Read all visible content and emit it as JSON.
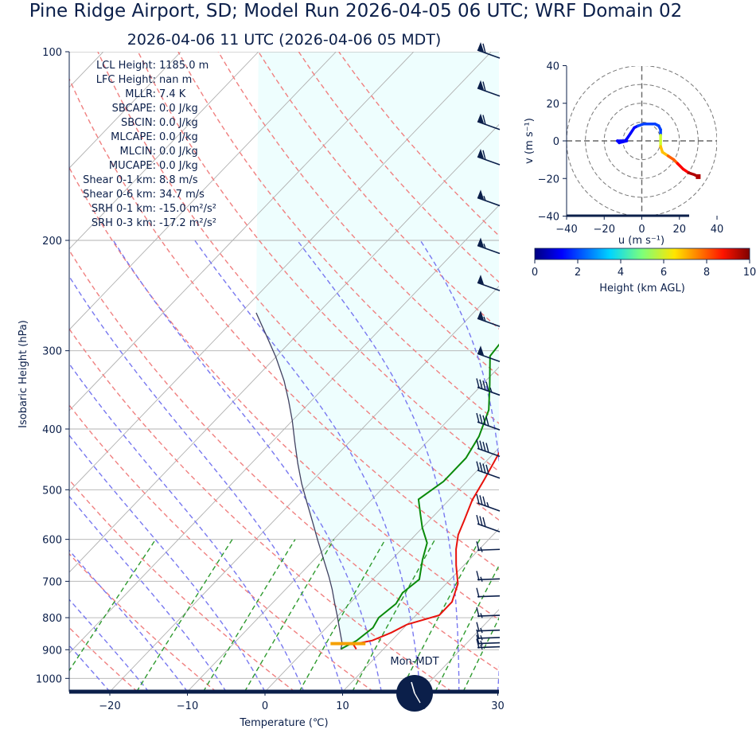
{
  "title": "Pine Ridge Airport, SD; Model Run 2026-04-05 06 UTC; WRF Domain 02",
  "subtitle": "2026-04-06 11 UTC  (2026-04-06 05 MDT)",
  "skewt": {
    "xlabel": "Temperature (℃)",
    "ylabel": "Isobaric Height (hPa)",
    "x_ticks": [
      "−20",
      "−10",
      "0",
      "10",
      "20",
      "30"
    ],
    "y_ticks": [
      "100",
      "200",
      "300",
      "400",
      "500",
      "600",
      "700",
      "800",
      "900",
      "1000"
    ]
  },
  "indices": [
    {
      "label": "LCL Height:",
      "value": "1185.0 m"
    },
    {
      "label": "LFC Height:",
      "value": "nan m"
    },
    {
      "label": "MLLR:",
      "value": "7.4 K"
    },
    {
      "label": "SBCAPE:",
      "value": "0.0 J/kg"
    },
    {
      "label": "SBCIN:",
      "value": "0.0 J/kg"
    },
    {
      "label": "MLCAPE:",
      "value": "0.0 J/kg"
    },
    {
      "label": "MLCIN:",
      "value": "0.0 J/kg"
    },
    {
      "label": "MUCAPE:",
      "value": "0.0 J/kg"
    },
    {
      "label": "Shear 0-1 km:",
      "value": "8.8 m/s"
    },
    {
      "label": "Shear 0-6 km:",
      "value": "34.7 m/s"
    },
    {
      "label": "SRH 0-1 km:",
      "value": "-15.0 m²/s²"
    },
    {
      "label": "SRH 0-3 km:",
      "value": "-17.2 m²/s²"
    }
  ],
  "clock_label": "Mon-MDT",
  "hodograph": {
    "xlabel": "u (m s⁻¹)",
    "ylabel": "v (m s⁻¹)",
    "ticks": [
      "−40",
      "−20",
      "0",
      "20",
      "40"
    ],
    "colorbar_label": "Height (km AGL)",
    "colorbar_ticks": [
      "0",
      "2",
      "4",
      "6",
      "8",
      "10"
    ]
  },
  "colors": {
    "temperature": "#e8120c",
    "dewpoint": "#0a8a0a",
    "parcel": "#404060",
    "dry_adiabat": "#f08080",
    "moist_adiabat": "#7878f0",
    "mixing_ratio": "#2e9a2e",
    "isotherm": "#b0b0b0",
    "cape_shade": "#eefefe",
    "barb": "#0b1f4a",
    "text": "#0b1f4a"
  },
  "chart_data": [
    {
      "type": "line",
      "name_hint": "skew-t log-p",
      "xlim": [
        -25,
        30
      ],
      "ylim": [
        1050,
        100
      ],
      "y_scale": "log",
      "grid": true,
      "series": [
        {
          "name": "Temperature",
          "points": [
            [
              6.5,
              898
            ],
            [
              5.5,
              882
            ],
            [
              7.5,
              870
            ],
            [
              9,
              845
            ],
            [
              10,
              820
            ],
            [
              13,
              793
            ],
            [
              13,
              755
            ],
            [
              11.5,
              706
            ],
            [
              9,
              660
            ],
            [
              7,
              622
            ],
            [
              5.5,
              590
            ],
            [
              4.5,
              560
            ],
            [
              3,
              519
            ],
            [
              2,
              481
            ],
            [
              1,
              448
            ],
            [
              -0.5,
              403
            ],
            [
              -3,
              358
            ],
            [
              -4.5,
              335
            ],
            [
              -6,
              313
            ],
            [
              -8,
              291
            ],
            [
              -10,
              270
            ],
            [
              -12,
              249
            ],
            [
              -12,
              233
            ],
            [
              -12,
              220
            ],
            [
              -9,
              207
            ],
            [
              -5,
              190
            ],
            [
              1,
              170
            ],
            [
              7,
              150
            ],
            [
              12,
              134
            ],
            [
              18,
              113
            ],
            [
              22,
              100
            ]
          ]
        },
        {
          "name": "Dew point",
          "points": [
            [
              4.5,
              898
            ],
            [
              5.5,
              870
            ],
            [
              6,
              830
            ],
            [
              5.5,
              800
            ],
            [
              6,
              760
            ],
            [
              5.5,
              730
            ],
            [
              6,
              695
            ],
            [
              4,
              647
            ],
            [
              2.5,
              608
            ],
            [
              0,
              575
            ],
            [
              -2,
              546
            ],
            [
              -4,
              518
            ],
            [
              -3,
              485
            ],
            [
              -3,
              445
            ],
            [
              -4,
              411
            ],
            [
              -6,
              373
            ],
            [
              -9,
              340
            ],
            [
              -12.5,
              306
            ],
            [
              -13,
              282
            ],
            [
              -13,
              255
            ],
            [
              -12,
              233
            ],
            [
              -10,
              208
            ],
            [
              -9,
              189
            ],
            [
              -8,
              170
            ],
            [
              -6,
              153
            ],
            [
              -2,
              133
            ],
            [
              2,
              120
            ],
            [
              6,
              109
            ],
            [
              8,
              100
            ]
          ]
        },
        {
          "name": "Parcel",
          "points": [
            [
              4.5,
              898
            ],
            [
              4,
              880
            ],
            [
              2,
              837
            ],
            [
              0,
              796
            ],
            [
              -2,
              758
            ],
            [
              -4,
              721
            ],
            [
              -6,
              688
            ],
            [
              -9,
              643
            ],
            [
              -12,
              601
            ],
            [
              -15,
              561
            ],
            [
              -18,
              524
            ],
            [
              -21,
              489
            ],
            [
              -24,
              454
            ],
            [
              -27,
              420
            ],
            [
              -30,
              388
            ],
            [
              -33,
              360
            ],
            [
              -36,
              335
            ],
            [
              -40,
              307
            ],
            [
              -44,
              283
            ],
            [
              -48,
              261
            ]
          ]
        }
      ],
      "surface_marker": {
        "temperature_range": [
          2.5,
          7
        ],
        "pressure": 880
      },
      "wind_barbs": [
        {
          "pressure": 100,
          "speed_kt": 60
        },
        {
          "pressure": 115,
          "speed_kt": 60
        },
        {
          "pressure": 130,
          "speed_kt": 60
        },
        {
          "pressure": 148,
          "speed_kt": 60
        },
        {
          "pressure": 172,
          "speed_kt": 55
        },
        {
          "pressure": 205,
          "speed_kt": 55
        },
        {
          "pressure": 235,
          "speed_kt": 50
        },
        {
          "pressure": 268,
          "speed_kt": 55
        },
        {
          "pressure": 305,
          "speed_kt": 50
        },
        {
          "pressure": 345,
          "speed_kt": 45
        },
        {
          "pressure": 392,
          "speed_kt": 40
        },
        {
          "pressure": 432,
          "speed_kt": 40
        },
        {
          "pressure": 468,
          "speed_kt": 40
        },
        {
          "pressure": 528,
          "speed_kt": 35
        },
        {
          "pressure": 570,
          "speed_kt": 30
        },
        {
          "pressure": 628,
          "speed_kt": 15
        },
        {
          "pressure": 700,
          "speed_kt": 15
        },
        {
          "pressure": 745,
          "speed_kt": 10
        },
        {
          "pressure": 800,
          "speed_kt": 15
        },
        {
          "pressure": 845,
          "speed_kt": 15
        },
        {
          "pressure": 868,
          "speed_kt": 15
        },
        {
          "pressure": 885,
          "speed_kt": 15
        },
        {
          "pressure": 898,
          "speed_kt": 15
        }
      ]
    },
    {
      "type": "line",
      "name_hint": "hodograph",
      "xlim": [
        -40,
        40
      ],
      "ylim": [
        -40,
        40
      ],
      "rings": [
        10,
        20,
        30,
        40
      ],
      "colormap": "jet",
      "color_range_km": [
        0,
        10
      ],
      "points": [
        [
          -8,
          0
        ],
        [
          -12,
          -1
        ],
        [
          -13,
          0
        ],
        [
          -11,
          0
        ],
        [
          -9,
          0
        ],
        [
          -8,
          1
        ],
        [
          -6,
          4
        ],
        [
          -4,
          7
        ],
        [
          -2,
          8
        ],
        [
          1,
          9
        ],
        [
          4,
          9
        ],
        [
          7,
          9
        ],
        [
          9,
          8
        ],
        [
          10,
          6
        ],
        [
          10,
          3
        ],
        [
          10,
          0
        ],
        [
          10,
          -3
        ],
        [
          11,
          -6
        ],
        [
          14,
          -8
        ],
        [
          17,
          -10
        ],
        [
          19,
          -12
        ],
        [
          22,
          -15
        ],
        [
          25,
          -17
        ],
        [
          28,
          -18
        ],
        [
          30,
          -19
        ]
      ]
    }
  ]
}
